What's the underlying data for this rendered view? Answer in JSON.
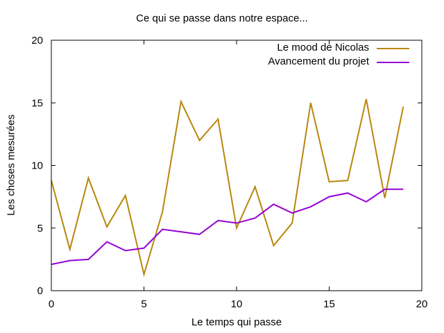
{
  "chart_data": {
    "type": "line",
    "title": "Ce qui se passe dans notre espace...",
    "xlabel": "Le temps qui passe",
    "ylabel": "Les choses mesurées",
    "xlim": [
      0,
      20
    ],
    "ylim": [
      0,
      20
    ],
    "xticks": [
      0,
      5,
      10,
      15,
      20
    ],
    "yticks": [
      0,
      5,
      10,
      15,
      20
    ],
    "grid": false,
    "legend_position": "top-right",
    "x": [
      0,
      1,
      2,
      3,
      4,
      5,
      6,
      7,
      8,
      9,
      10,
      11,
      12,
      13,
      14,
      15,
      16,
      17,
      18,
      19
    ],
    "series": [
      {
        "name": "Le mood de Nicolas",
        "color": "#b8860b",
        "values": [
          8.8,
          3.3,
          9.0,
          5.1,
          7.6,
          1.3,
          6.3,
          15.1,
          12.0,
          13.7,
          5.0,
          8.3,
          3.6,
          5.4,
          15.0,
          8.7,
          8.8,
          15.3,
          7.4,
          14.7
        ]
      },
      {
        "name": "Avancement du projet",
        "color": "#9400d3",
        "values": [
          2.1,
          2.4,
          2.5,
          3.9,
          3.2,
          3.4,
          4.9,
          4.7,
          4.5,
          5.6,
          5.4,
          5.8,
          6.9,
          6.2,
          6.7,
          7.5,
          7.8,
          7.1,
          8.1,
          8.1
        ]
      }
    ]
  }
}
